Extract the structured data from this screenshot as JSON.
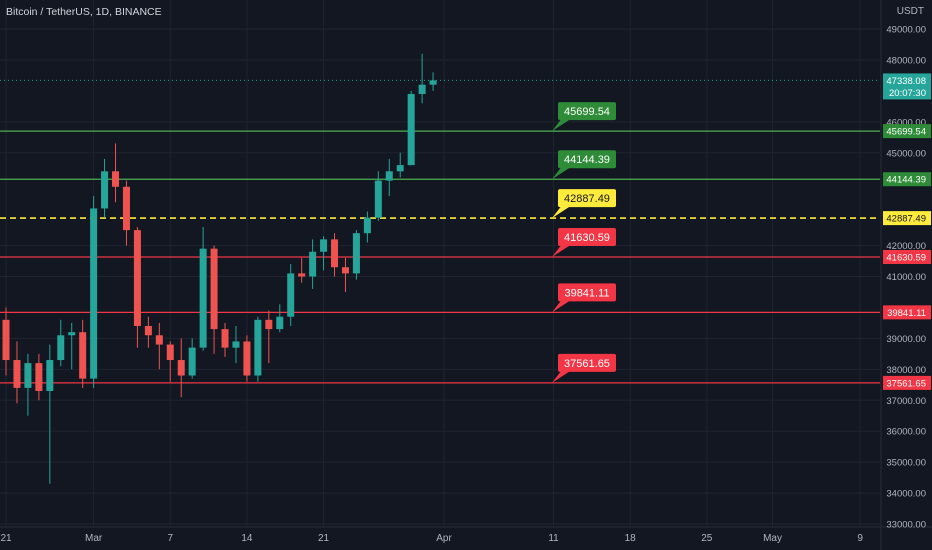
{
  "chart_data": {
    "type": "candlestick",
    "title": "Bitcoin / TetherUS, 1D, BINANCE",
    "currency": "USDT",
    "ylim": [
      33000,
      49500
    ],
    "y_ticks": [
      {
        "value": 49000,
        "label": "49000.00"
      },
      {
        "value": 48000,
        "label": "48000.00"
      },
      {
        "value": 46000,
        "label": "46000.00"
      },
      {
        "value": 45000,
        "label": "45000.00"
      },
      {
        "value": 42000,
        "label": "42000.00"
      },
      {
        "value": 41000,
        "label": "41000.00"
      },
      {
        "value": 39000,
        "label": "39000.00"
      },
      {
        "value": 38000,
        "label": "38000.00"
      },
      {
        "value": 37000,
        "label": "37000.00"
      },
      {
        "value": 36000,
        "label": "36000.00"
      },
      {
        "value": 35000,
        "label": "35000.00"
      },
      {
        "value": 34000,
        "label": "34000.00"
      },
      {
        "value": 33000,
        "label": "33000.00"
      }
    ],
    "x_ticks": [
      {
        "index": 0,
        "label": "21"
      },
      {
        "index": 8,
        "label": "Mar"
      },
      {
        "index": 15,
        "label": "7"
      },
      {
        "index": 22,
        "label": "14"
      },
      {
        "index": 29,
        "label": "21"
      },
      {
        "index": 40,
        "label": "Apr"
      },
      {
        "index": 50,
        "label": "11"
      },
      {
        "index": 57,
        "label": "18"
      },
      {
        "index": 64,
        "label": "25"
      },
      {
        "index": 70,
        "label": "May"
      },
      {
        "index": 78,
        "label": "9"
      }
    ],
    "x_start_index": -0.55,
    "x_pixels_per_index": 10.95,
    "candles": [
      {
        "o": 39600,
        "h": 40000,
        "l": 37800,
        "c": 38300
      },
      {
        "o": 38300,
        "h": 38900,
        "l": 36900,
        "c": 37400
      },
      {
        "o": 37400,
        "h": 38500,
        "l": 36500,
        "c": 38200
      },
      {
        "o": 38200,
        "h": 38500,
        "l": 37000,
        "c": 37300
      },
      {
        "o": 37300,
        "h": 38800,
        "l": 34300,
        "c": 38300
      },
      {
        "o": 38300,
        "h": 39600,
        "l": 38100,
        "c": 39100
      },
      {
        "o": 39100,
        "h": 39500,
        "l": 38000,
        "c": 39200
      },
      {
        "o": 39200,
        "h": 39600,
        "l": 37400,
        "c": 37700
      },
      {
        "o": 37700,
        "h": 43600,
        "l": 37400,
        "c": 43200
      },
      {
        "o": 43200,
        "h": 44800,
        "l": 42900,
        "c": 44400
      },
      {
        "o": 44400,
        "h": 45300,
        "l": 43400,
        "c": 43900
      },
      {
        "o": 43900,
        "h": 44100,
        "l": 42000,
        "c": 42500
      },
      {
        "o": 42500,
        "h": 42600,
        "l": 38700,
        "c": 39400
      },
      {
        "o": 39400,
        "h": 39700,
        "l": 38700,
        "c": 39100
      },
      {
        "o": 39100,
        "h": 39500,
        "l": 38000,
        "c": 38800
      },
      {
        "o": 38800,
        "h": 38900,
        "l": 37600,
        "c": 38300
      },
      {
        "o": 38300,
        "h": 39000,
        "l": 37100,
        "c": 37800
      },
      {
        "o": 37800,
        "h": 39000,
        "l": 37700,
        "c": 38700
      },
      {
        "o": 38700,
        "h": 42600,
        "l": 38600,
        "c": 41900
      },
      {
        "o": 41900,
        "h": 42000,
        "l": 38500,
        "c": 39300
      },
      {
        "o": 39300,
        "h": 39500,
        "l": 38400,
        "c": 38700
      },
      {
        "o": 38700,
        "h": 39400,
        "l": 38200,
        "c": 38900
      },
      {
        "o": 38900,
        "h": 39100,
        "l": 37600,
        "c": 37800
      },
      {
        "o": 37800,
        "h": 39700,
        "l": 37600,
        "c": 39600
      },
      {
        "o": 39600,
        "h": 39900,
        "l": 38200,
        "c": 39300
      },
      {
        "o": 39300,
        "h": 40100,
        "l": 39200,
        "c": 39700
      },
      {
        "o": 39700,
        "h": 41400,
        "l": 39400,
        "c": 41100
      },
      {
        "o": 41100,
        "h": 41600,
        "l": 40800,
        "c": 41000
      },
      {
        "o": 41000,
        "h": 42200,
        "l": 40600,
        "c": 41800
      },
      {
        "o": 41800,
        "h": 42300,
        "l": 41200,
        "c": 42200
      },
      {
        "o": 42200,
        "h": 42400,
        "l": 41000,
        "c": 41300
      },
      {
        "o": 41300,
        "h": 41600,
        "l": 40500,
        "c": 41100
      },
      {
        "o": 41100,
        "h": 42500,
        "l": 40900,
        "c": 42400
      },
      {
        "o": 42400,
        "h": 43100,
        "l": 42100,
        "c": 42900
      },
      {
        "o": 42900,
        "h": 44400,
        "l": 42800,
        "c": 44100
      },
      {
        "o": 44100,
        "h": 44800,
        "l": 43600,
        "c": 44400
      },
      {
        "o": 44400,
        "h": 45000,
        "l": 44200,
        "c": 44600
      },
      {
        "o": 44600,
        "h": 47000,
        "l": 44600,
        "c": 46900
      },
      {
        "o": 46900,
        "h": 48200,
        "l": 46600,
        "c": 47200
      },
      {
        "o": 47200,
        "h": 47600,
        "l": 47000,
        "c": 47338
      }
    ],
    "current_price": {
      "value": 47338.08,
      "label": "47338.08",
      "countdown": "20:07:30"
    },
    "levels": [
      {
        "value": 45699.54,
        "label": "45699.54",
        "color": "#4caf50",
        "tag_bg": "#2e8b37",
        "style": "solid",
        "tag_text": "#ffffff"
      },
      {
        "value": 44144.39,
        "label": "44144.39",
        "color": "#4caf50",
        "tag_bg": "#2e8b37",
        "style": "solid",
        "tag_text": "#ffffff"
      },
      {
        "value": 42887.49,
        "label": "42887.49",
        "color": "#ffeb3b",
        "tag_bg": "#ffeb3b",
        "style": "dashed",
        "tag_text": "#131722"
      },
      {
        "value": 41630.59,
        "label": "41630.59",
        "color": "#f23645",
        "tag_bg": "#f23645",
        "style": "solid",
        "tag_text": "#ffffff"
      },
      {
        "value": 39841.11,
        "label": "39841.11",
        "color": "#f23645",
        "tag_bg": "#f23645",
        "style": "solid",
        "tag_text": "#ffffff"
      },
      {
        "value": 37561.65,
        "label": "37561.65",
        "color": "#f23645",
        "tag_bg": "#f23645",
        "style": "solid",
        "tag_text": "#ffffff"
      }
    ],
    "colors": {
      "background": "#131722",
      "grid": "#1f2430",
      "up": "#26a69a",
      "down": "#ef5350",
      "axis_text": "#b2b5be",
      "price_tag": "#26a69a"
    }
  }
}
